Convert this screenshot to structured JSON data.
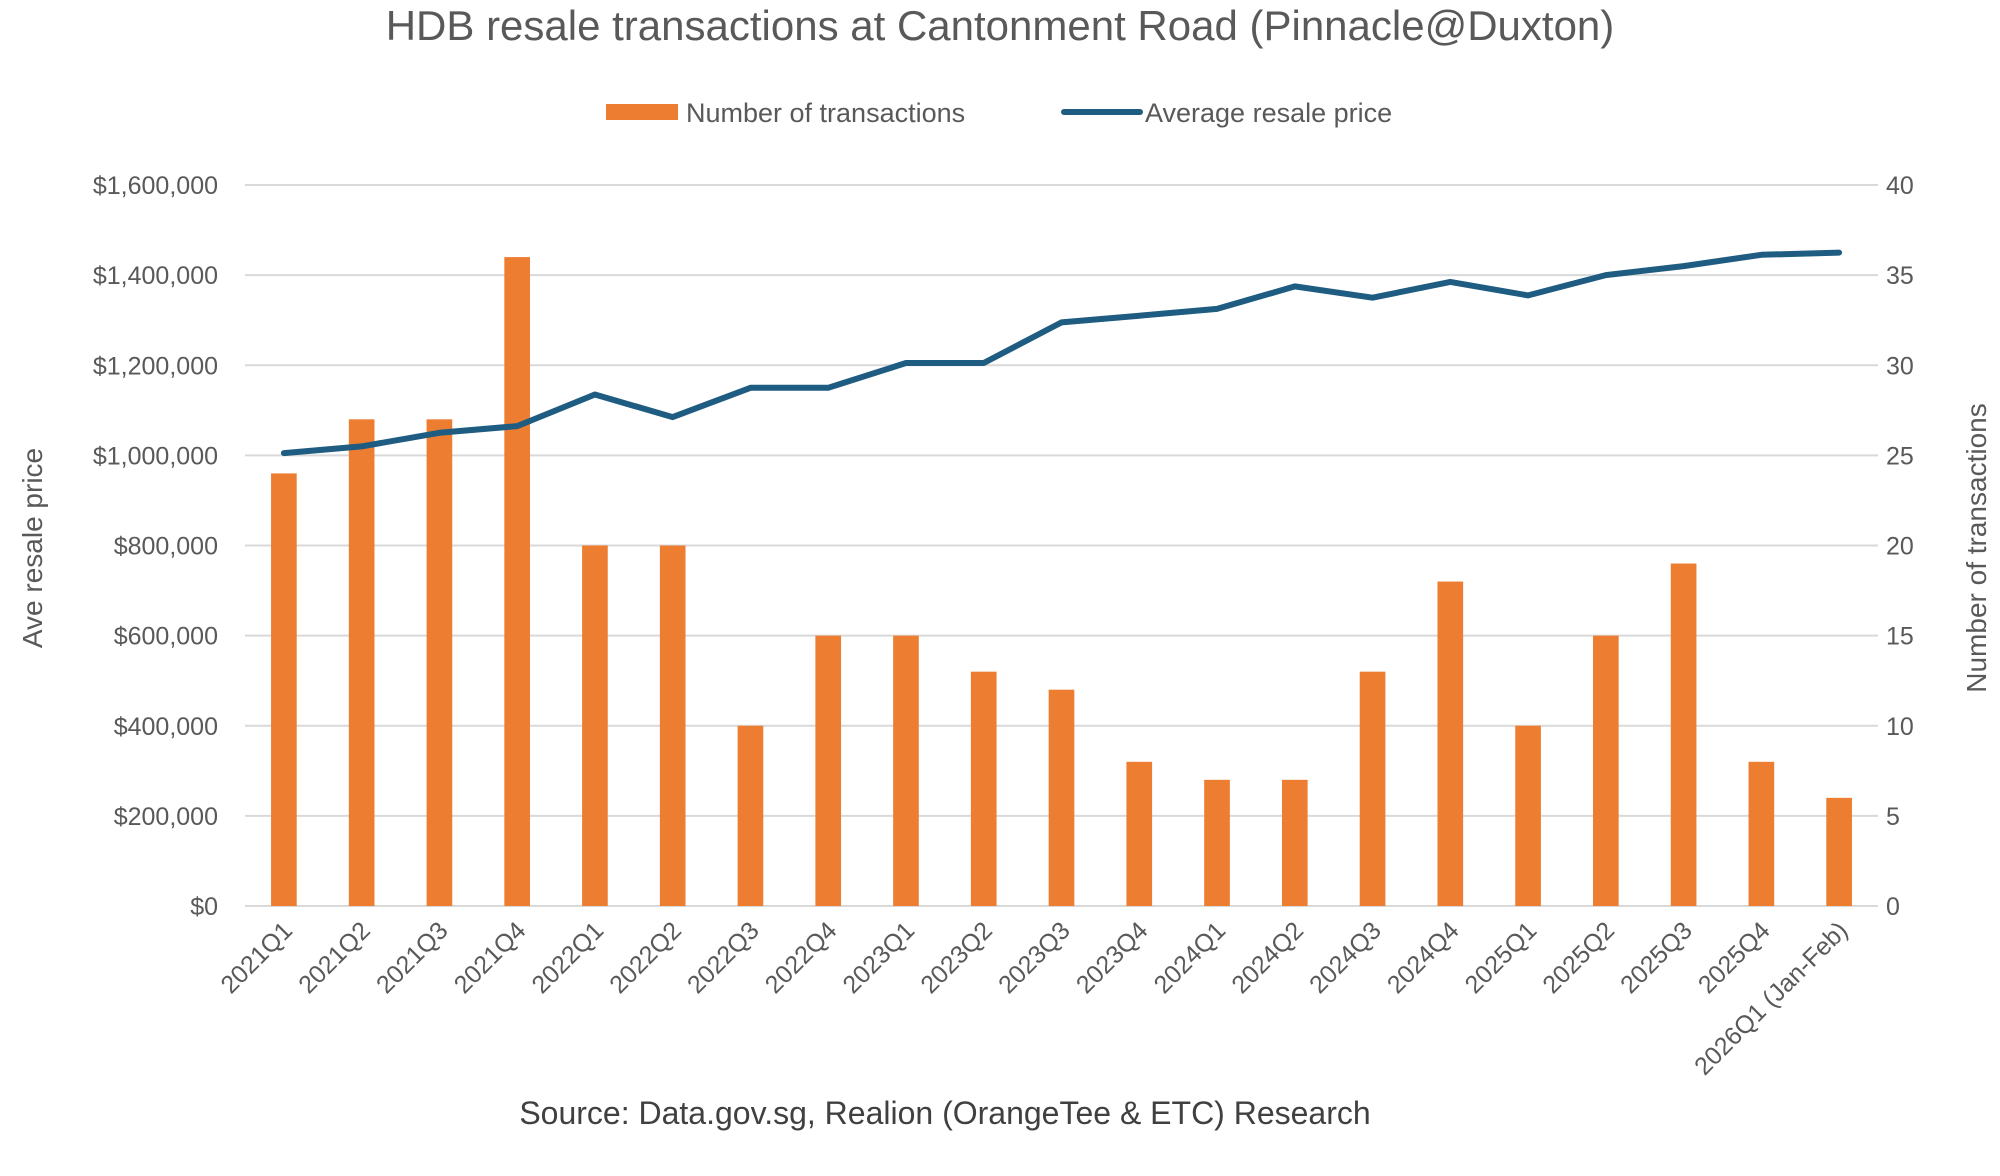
{
  "chart_data": {
    "type": "bar+line",
    "title": "HDB resale transactions at Cantonment Road (Pinnacle@Duxton)",
    "source": "Source: Data.gov.sg, Realion (OrangeTee & ETC) Research",
    "categories": [
      "2021Q1",
      "2021Q2",
      "2021Q3",
      "2021Q4",
      "2022Q1",
      "2022Q2",
      "2022Q3",
      "2022Q4",
      "2023Q1",
      "2023Q2",
      "2023Q3",
      "2023Q4",
      "2024Q1",
      "2024Q2",
      "2024Q3",
      "2024Q4",
      "2025Q1",
      "2025Q2",
      "2025Q3",
      "2025Q4",
      "2026Q1 (Jan-Feb)"
    ],
    "series": [
      {
        "name": "Number of transactions",
        "type": "bar",
        "axis": "right",
        "color": "#ED7D31",
        "values": [
          24,
          27,
          27,
          36,
          20,
          20,
          10,
          15,
          15,
          13,
          12,
          8,
          7,
          7,
          13,
          18,
          10,
          15,
          19,
          8,
          6
        ]
      },
      {
        "name": "Average resale price",
        "type": "line",
        "axis": "left",
        "color": "#1F5C82",
        "values": [
          1005000,
          1020000,
          1050000,
          1065000,
          1135000,
          1085000,
          1150000,
          1150000,
          1205000,
          1205000,
          1295000,
          1310000,
          1325000,
          1375000,
          1350000,
          1385000,
          1355000,
          1400000,
          1420000,
          1445000,
          1450000
        ]
      }
    ],
    "y_left": {
      "label": "Ave resale price",
      "range": [
        0,
        1600000
      ],
      "ticks": [
        0,
        200000,
        400000,
        600000,
        800000,
        1000000,
        1200000,
        1400000,
        1600000
      ],
      "tick_labels": [
        "$0",
        "$200,000",
        "$400,000",
        "$600,000",
        "$800,000",
        "$1,000,000",
        "$1,200,000",
        "$1,400,000",
        "$1,600,000"
      ]
    },
    "y_right": {
      "label": "Number of transactions",
      "range": [
        0,
        40
      ],
      "ticks": [
        0,
        5,
        10,
        15,
        20,
        25,
        30,
        35,
        40
      ],
      "tick_labels": [
        "0",
        "5",
        "10",
        "15",
        "20",
        "25",
        "30",
        "35",
        "40"
      ]
    },
    "grid": true,
    "legend_position": "top-center"
  }
}
